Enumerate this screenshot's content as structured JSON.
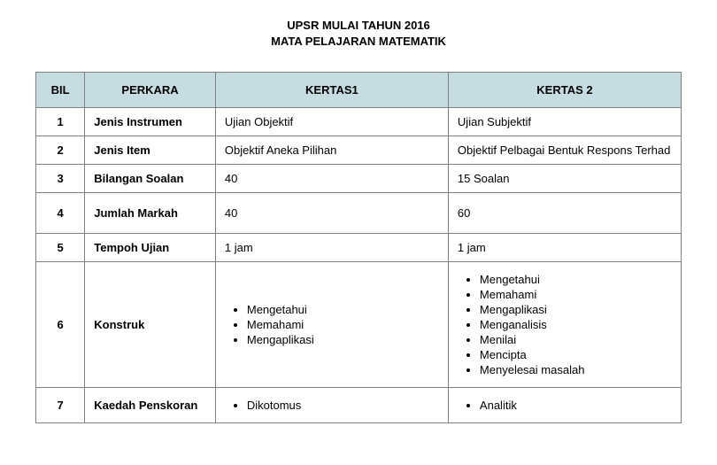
{
  "title_line1": "UPSR MULAI TAHUN 2016",
  "title_line2": "MATA PELAJARAN MATEMATIK",
  "headers": {
    "bil": "BIL",
    "perkara": "PERKARA",
    "kertas1": "KERTAS1",
    "kertas2": "KERTAS 2"
  },
  "rows": [
    {
      "bil": "1",
      "perkara": "Jenis Instrumen",
      "k1": "Ujian Objektif",
      "k2": "Ujian Subjektif"
    },
    {
      "bil": "2",
      "perkara": "Jenis Item",
      "k1": "Objektif Aneka Pilihan",
      "k2": "Objektif Pelbagai Bentuk Respons Terhad"
    },
    {
      "bil": "3",
      "perkara": "Bilangan Soalan",
      "k1": "40",
      "k2": "15 Soalan"
    },
    {
      "bil": "4",
      "perkara": "Jumlah Markah",
      "k1": "40",
      "k2": "60"
    },
    {
      "bil": "5",
      "perkara": "Tempoh Ujian",
      "k1": "1 jam",
      "k2": "1 jam"
    },
    {
      "bil": "6",
      "perkara": "Konstruk",
      "k1_list": [
        "Mengetahui",
        "Memahami",
        "Mengaplikasi"
      ],
      "k2_list": [
        "Mengetahui",
        "Memahami",
        "Mengaplikasi",
        "Menganalisis",
        "Menilai",
        "Mencipta",
        "Menyelesai masalah"
      ]
    },
    {
      "bil": "7",
      "perkara": "Kaedah Penskoran",
      "k1_list": [
        "Dikotomus"
      ],
      "k2_list": [
        "Analitik"
      ]
    }
  ],
  "colors": {
    "header_bg": "#c5dde0",
    "border": "#808080",
    "background": "#ffffff",
    "text": "#000000"
  }
}
